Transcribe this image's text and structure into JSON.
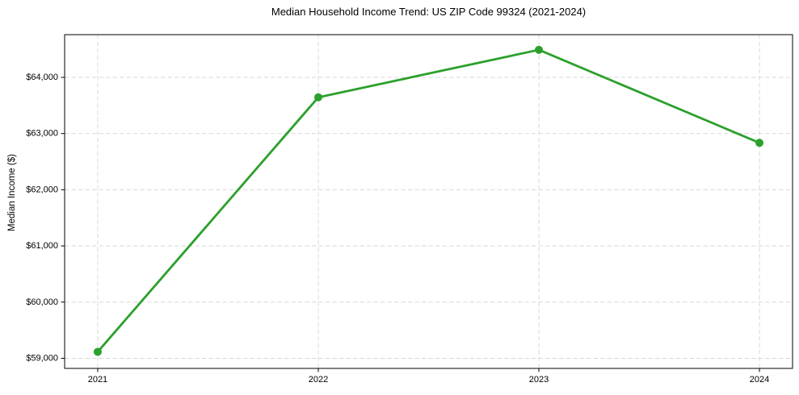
{
  "figure": {
    "background": "#ffffff"
  },
  "chart_data": {
    "type": "line",
    "title": "Median Household Income Trend: US ZIP Code 99324 (2021-2024)",
    "xlabel": "",
    "ylabel": "Median Income ($)",
    "x": [
      2021,
      2022,
      2023,
      2024
    ],
    "xtick_labels": [
      "2021",
      "2022",
      "2023",
      "2024"
    ],
    "series": [
      {
        "name": "Median Household Income",
        "values": [
          59115,
          63645,
          64490,
          62835
        ]
      }
    ],
    "yticks": [
      59000,
      60000,
      61000,
      62000,
      63000,
      64000
    ],
    "ytick_labels": [
      "$59,000",
      "$60,000",
      "$61,000",
      "$62,000",
      "$63,000",
      "$64,000"
    ],
    "xlim": [
      2020.85,
      2024.15
    ],
    "ylim": [
      58820,
      64760
    ],
    "grid": true,
    "grid_style": "dashed",
    "legend_position": "none",
    "marker": "o",
    "colors": {
      "line": "#2ca02c",
      "marker": "#2ca02c",
      "grid": "#d9d9d9",
      "axis": "#000000",
      "text": "#000000"
    }
  }
}
